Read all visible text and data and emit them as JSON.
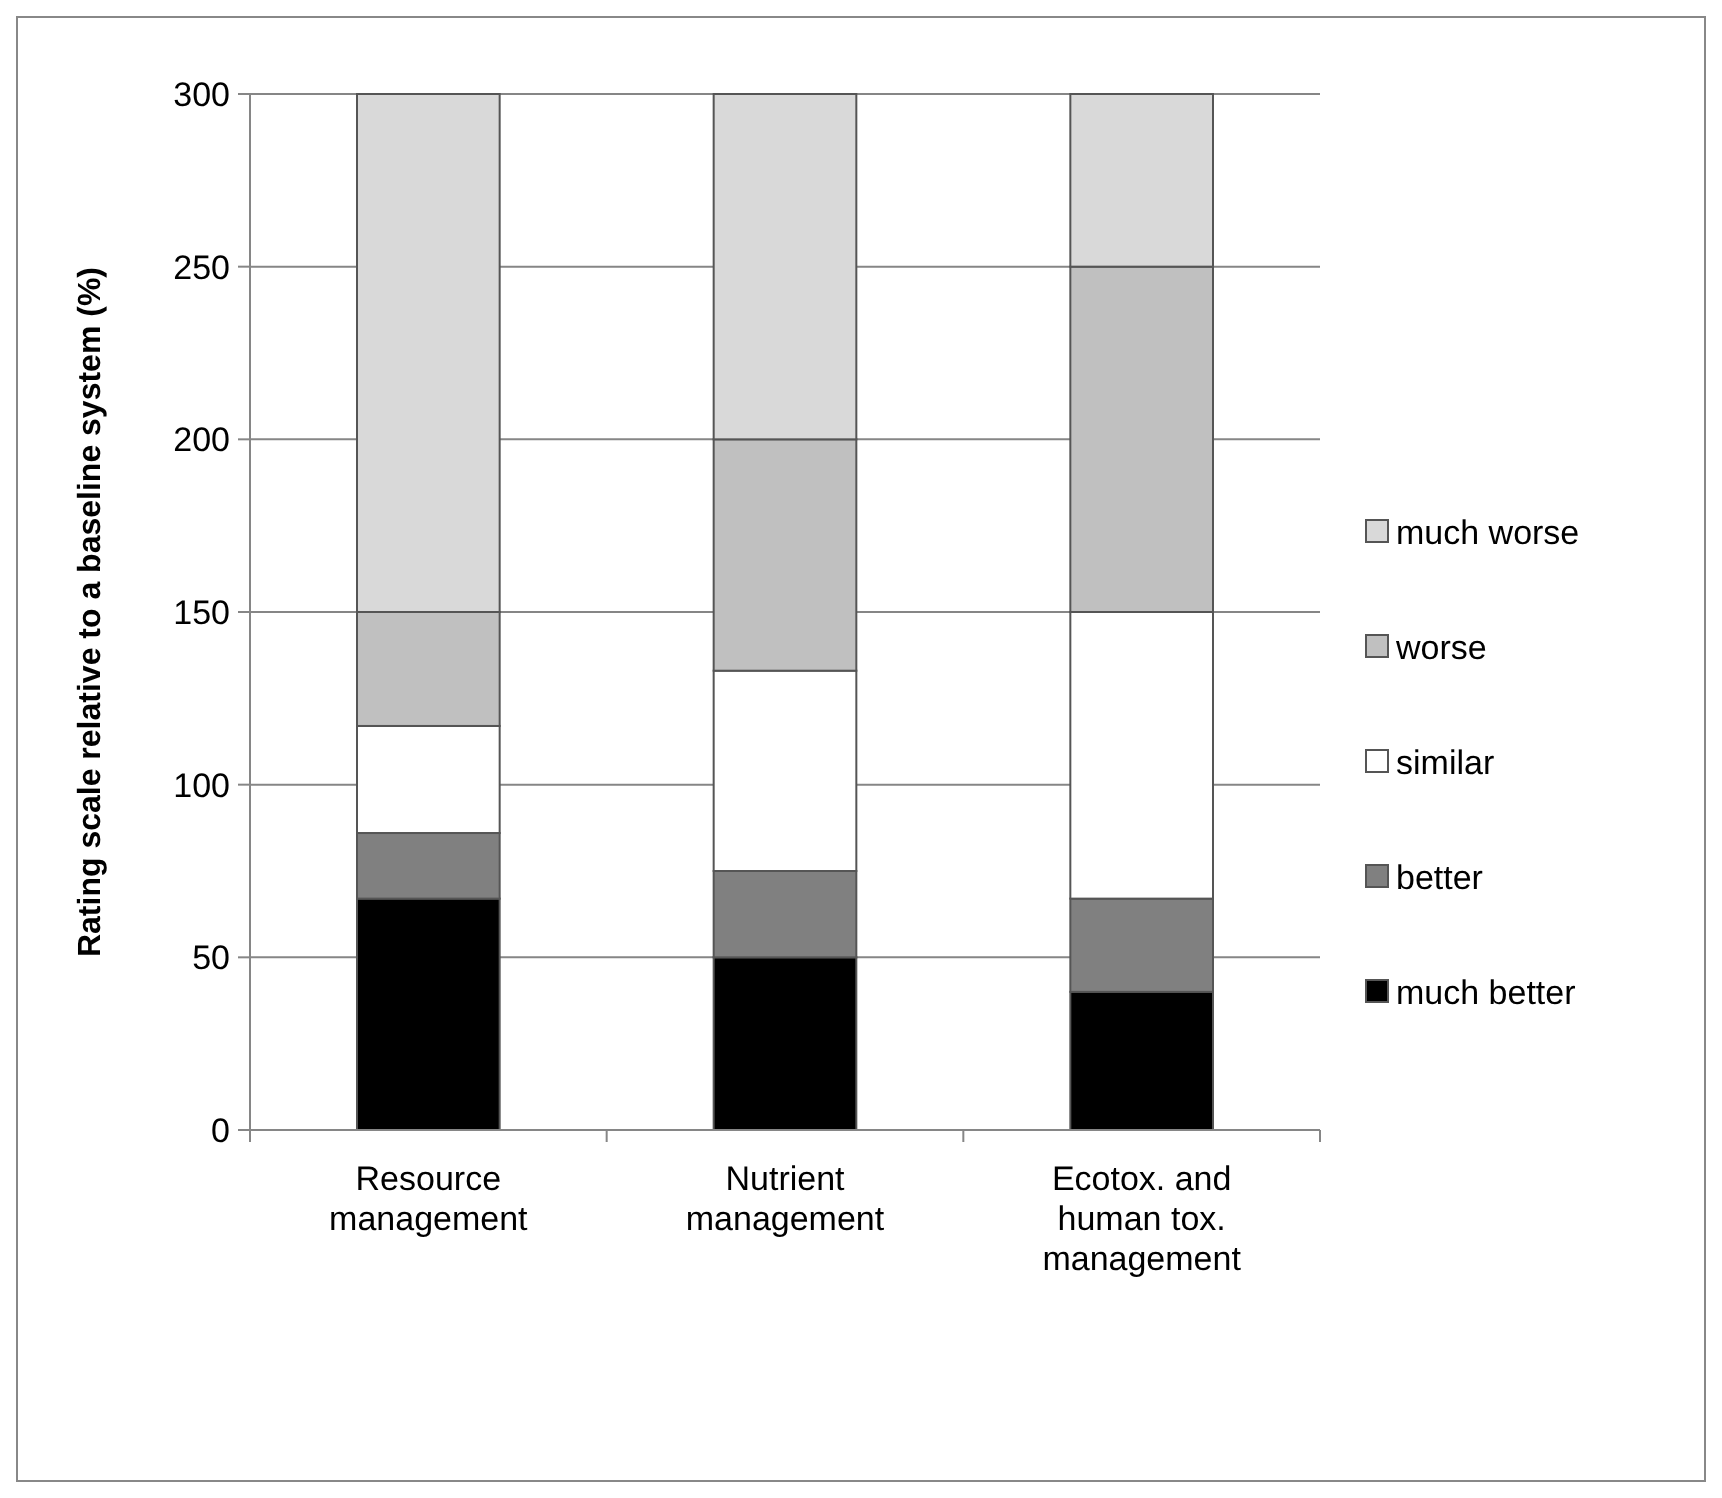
{
  "chart_data": {
    "type": "bar",
    "stacked": true,
    "ylabel": "Rating scale relative to a baseline system (%)",
    "categories": [
      "Resource\nmanagement",
      "Nutrient\nmanagement",
      "Ecotox. and\nhuman tox.\nmanagement"
    ],
    "series": [
      {
        "name": "much better",
        "color": "#000000",
        "values": [
          67,
          50,
          40
        ]
      },
      {
        "name": "better",
        "color": "#808080",
        "values": [
          19,
          25,
          27
        ]
      },
      {
        "name": "similar",
        "color": "#ffffff",
        "values": [
          31,
          58,
          83
        ]
      },
      {
        "name": "worse",
        "color": "#c0c0c0",
        "values": [
          33,
          67,
          100
        ]
      },
      {
        "name": "much worse",
        "color": "#d9d9d9",
        "values": [
          150,
          100,
          50
        ]
      }
    ],
    "ylim": [
      0,
      300
    ],
    "yticks": [
      0,
      50,
      100,
      150,
      200,
      250,
      300
    ],
    "grid": "y",
    "legend": "right"
  }
}
